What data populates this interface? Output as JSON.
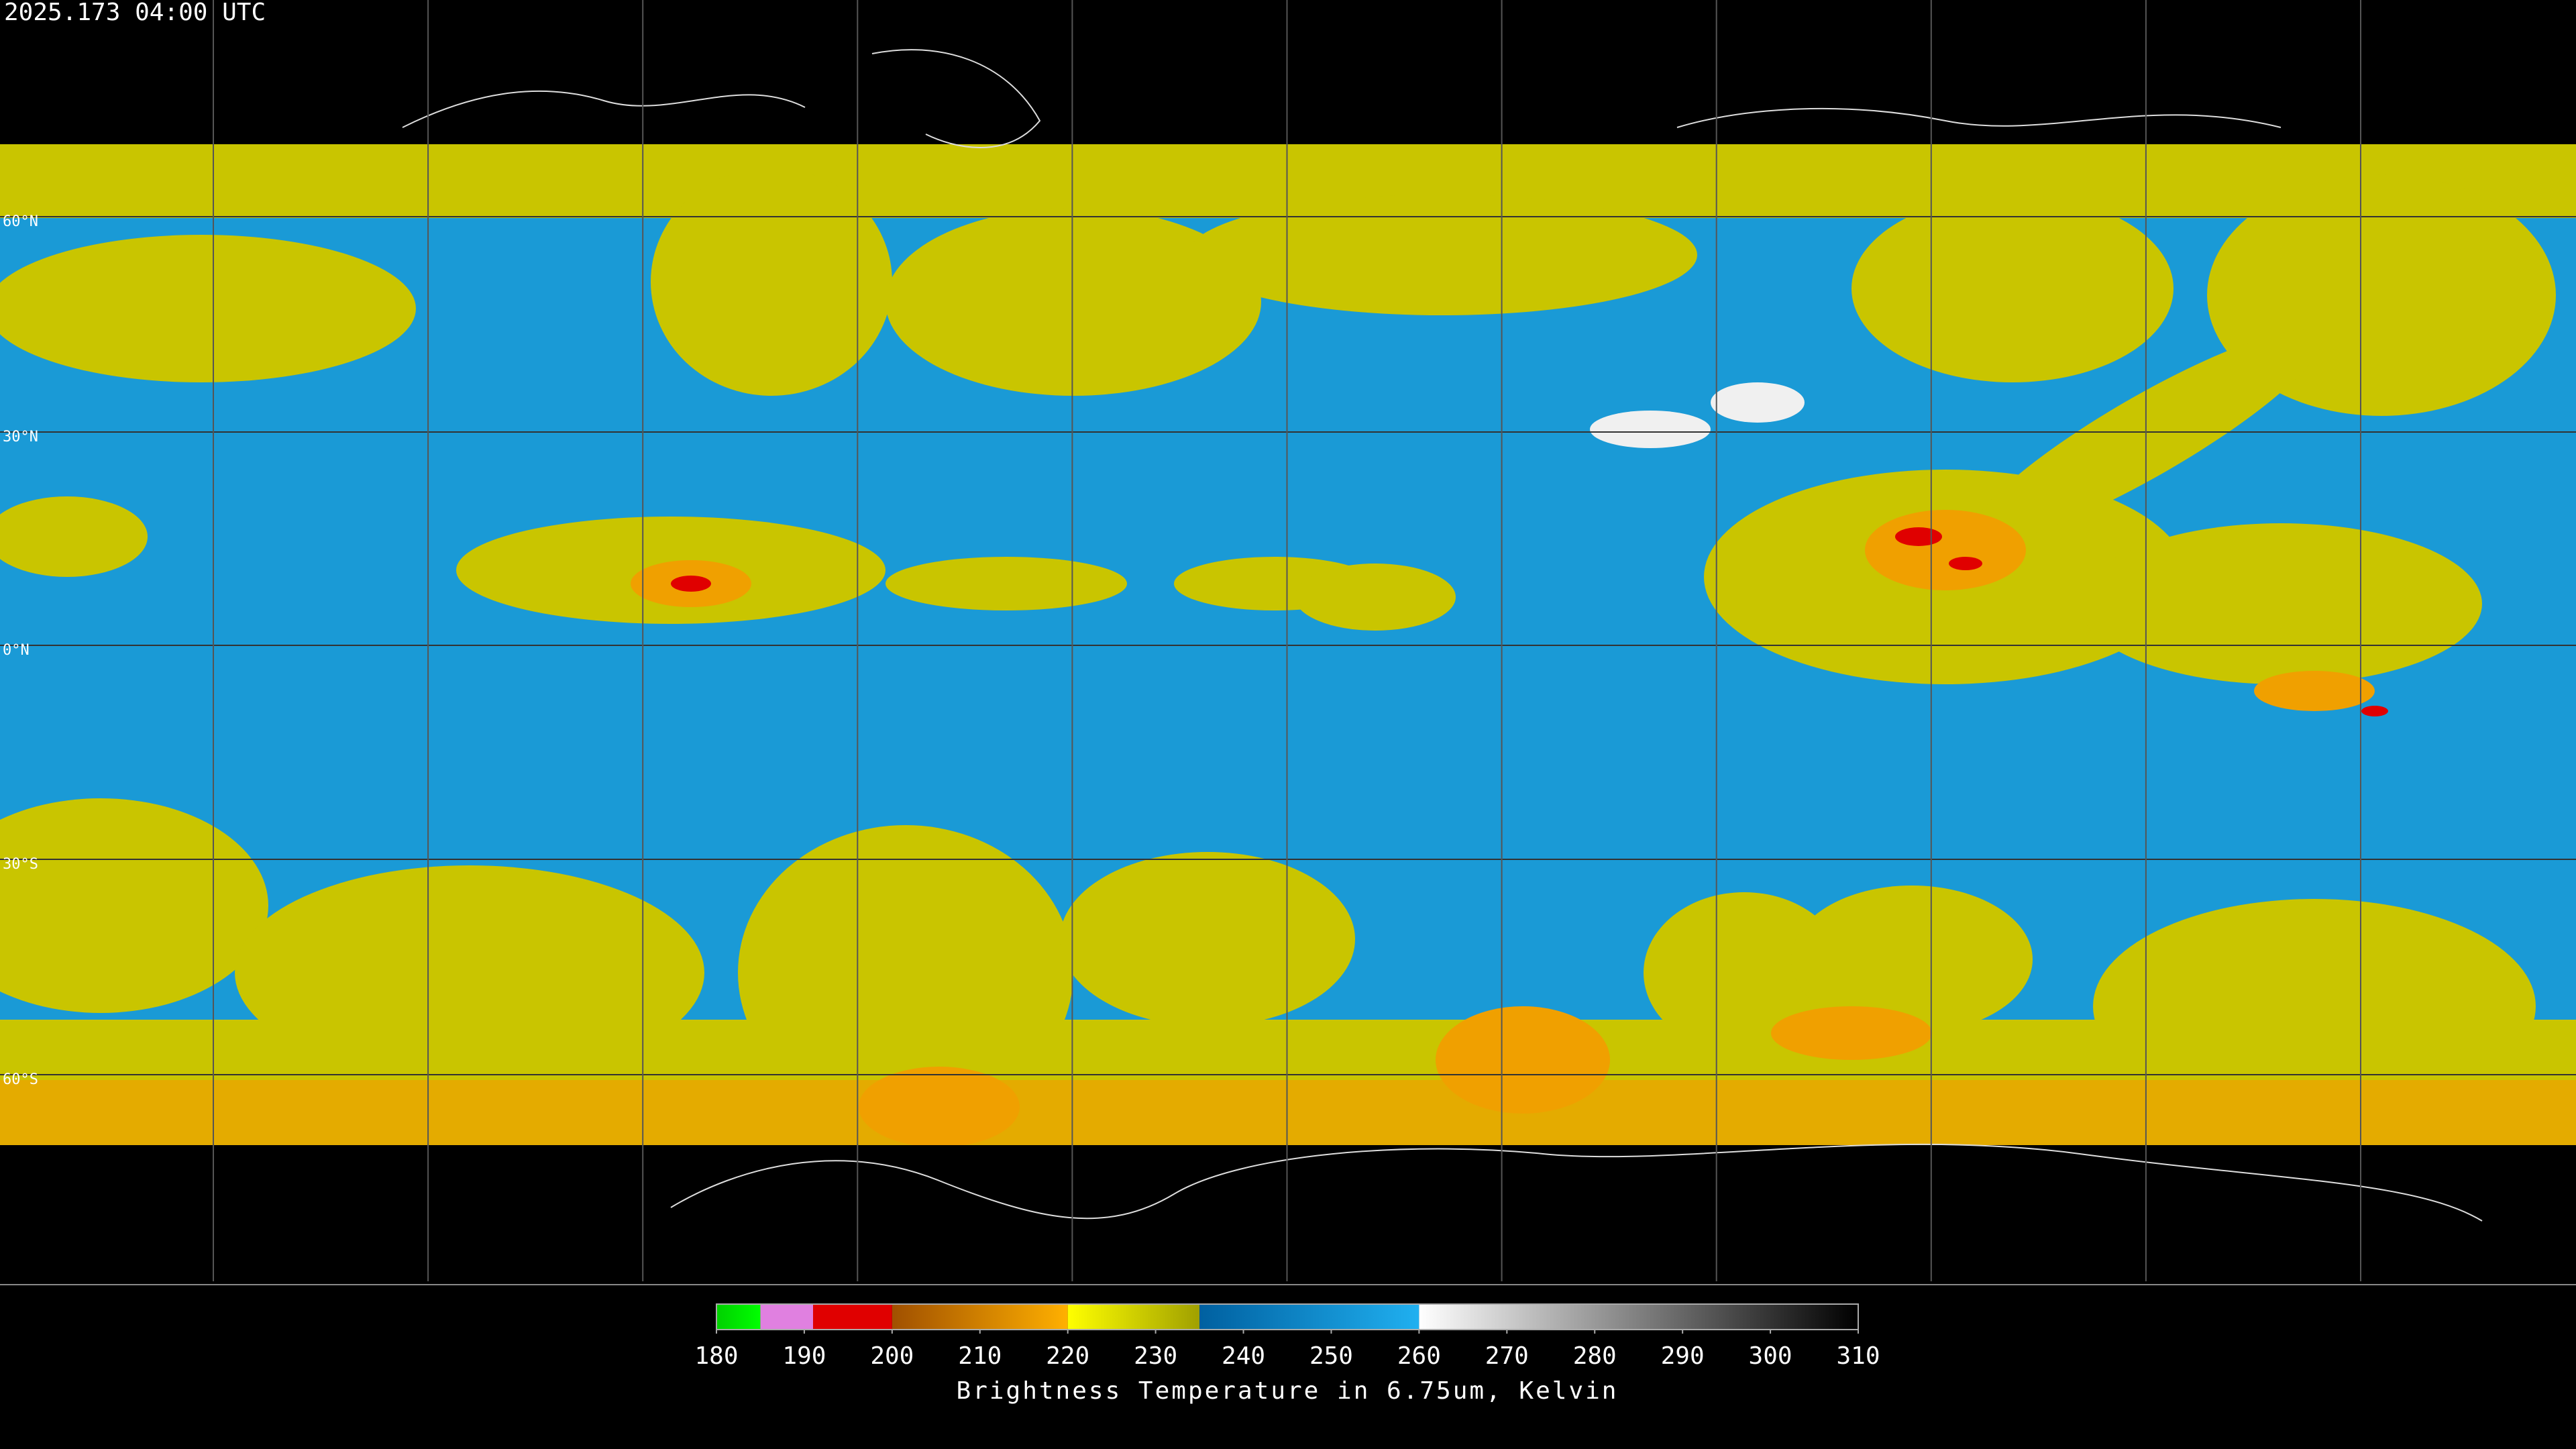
{
  "timestamp": "2025.173 04:00 UTC",
  "latitude_labels": [
    "60°N",
    "30°N",
    "0°N",
    "30°S",
    "60°S"
  ],
  "colorbar": {
    "label": "Brightness Temperature in 6.75um, Kelvin",
    "lim": [
      180,
      310
    ],
    "ticks": [
      180,
      190,
      200,
      210,
      220,
      230,
      240,
      250,
      260,
      270,
      280,
      290,
      300,
      310
    ],
    "segments": [
      {
        "from": 180,
        "to": 185,
        "colors": [
          "#00d000",
          "#00ff00"
        ]
      },
      {
        "from": 185,
        "to": 191,
        "colors": [
          "#e080e0",
          "#e080e0"
        ]
      },
      {
        "from": 191,
        "to": 200,
        "colors": [
          "#e00000",
          "#e00000"
        ]
      },
      {
        "from": 200,
        "to": 220,
        "colors": [
          "#a05000",
          "#ffb000"
        ]
      },
      {
        "from": 220,
        "to": 235,
        "colors": [
          "#ffff00",
          "#a0a000"
        ]
      },
      {
        "from": 235,
        "to": 260,
        "colors": [
          "#0060a0",
          "#20b0f0"
        ]
      },
      {
        "from": 260,
        "to": 310,
        "colors": [
          "#ffffff",
          "#000000"
        ]
      }
    ]
  }
}
